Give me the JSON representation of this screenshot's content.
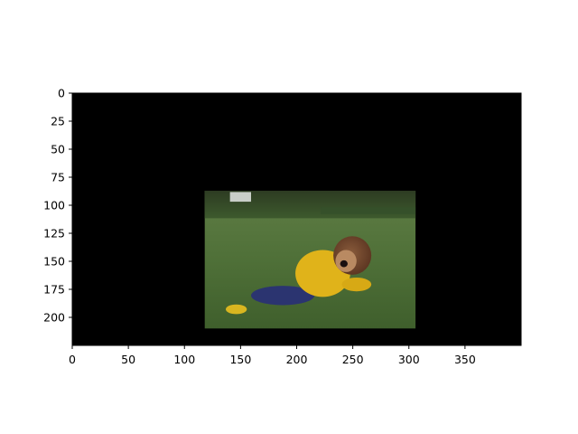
{
  "chart_data": {
    "type": "image",
    "title": "",
    "xlabel": "",
    "ylabel": "",
    "xlim": [
      0,
      400
    ],
    "ylim": [
      225,
      0
    ],
    "x_ticks": [
      0,
      50,
      100,
      150,
      200,
      250,
      300,
      350
    ],
    "y_ticks": [
      0,
      25,
      50,
      75,
      100,
      125,
      150,
      175,
      200
    ],
    "background_color": "#000000",
    "photo_extent": {
      "x": [
        118,
        306
      ],
      "y": [
        87,
        210
      ]
    },
    "photo_subject": "costumed character in yellow jacket and blue pants lying on a grassy hillside"
  }
}
